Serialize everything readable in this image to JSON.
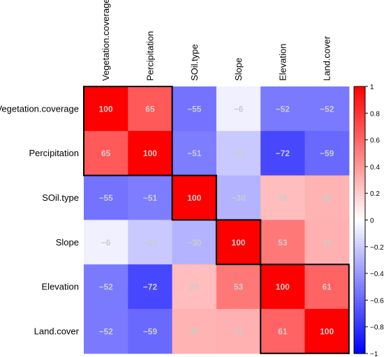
{
  "chart_data": {
    "type": "heatmap",
    "title": "",
    "xlabel": "",
    "ylabel": "",
    "categories": [
      "Vegetation.coverage",
      "Percipitation",
      "SOil.type",
      "Slope",
      "Elevation",
      "Land.cover"
    ],
    "values": [
      [
        100,
        65,
        -55,
        -6,
        -52,
        -52
      ],
      [
        65,
        100,
        -51,
        -21,
        -72,
        -59
      ],
      [
        -55,
        -51,
        100,
        -30,
        26,
        30
      ],
      [
        -6,
        -21,
        -30,
        100,
        53,
        31
      ],
      [
        -52,
        -72,
        26,
        53,
        100,
        61
      ],
      [
        -52,
        -59,
        30,
        31,
        61,
        100
      ]
    ],
    "cell_labels_scale": 100,
    "colorbar": {
      "range": [
        -1,
        1
      ],
      "ticks": [
        "1",
        "0.8",
        "0.6",
        "0.4",
        "0.2",
        "0",
        "−0.2",
        "−0.4",
        "−0.6",
        "−0.8",
        "−1"
      ],
      "tick_values": [
        1,
        0.8,
        0.6,
        0.4,
        0.2,
        0,
        -0.2,
        -0.4,
        -0.6,
        -0.8,
        -1
      ]
    },
    "clusters": [
      [
        0,
        1
      ],
      [
        2,
        2
      ],
      [
        3,
        3
      ],
      [
        4,
        5
      ]
    ],
    "colors": {
      "positive": "#ff0000",
      "zero": "#ffffff",
      "negative": "#0000ff",
      "label_text": "#cccccc",
      "cluster_border": "#000000"
    }
  }
}
